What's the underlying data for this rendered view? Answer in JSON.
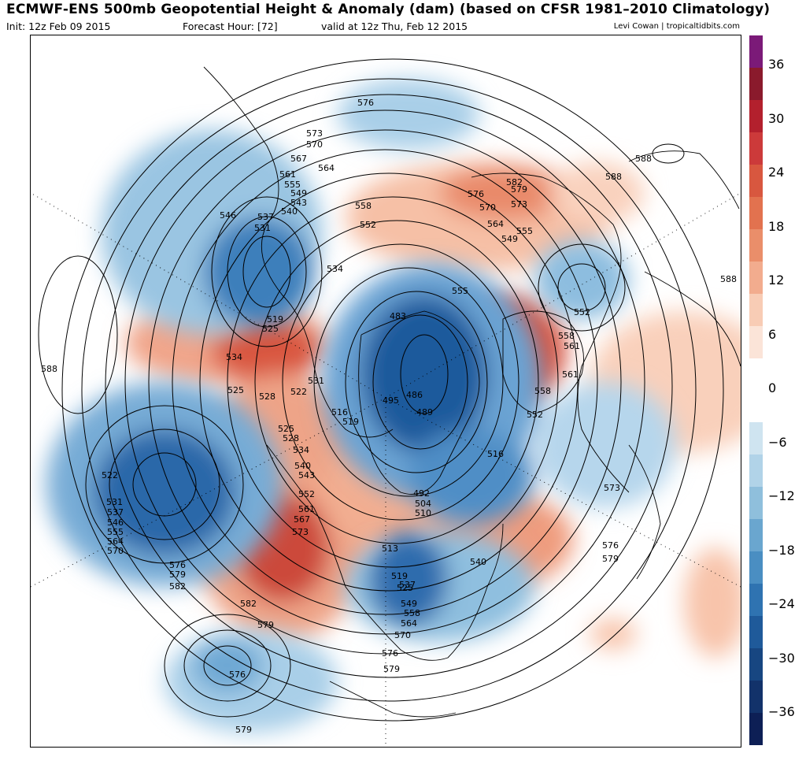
{
  "header": {
    "title": "ECMWF-ENS 500mb Geopotential Height & Anomaly (dam) (based on CFSR 1981–2010 Climatology)",
    "init": "Init: 12z Feb 09 2015",
    "forecast_hour": "Forecast Hour: [72]",
    "valid": "valid at 12z Thu, Feb 12 2015",
    "credit": "Levi Cowan | tropicaltidbits.com"
  },
  "colorbar": {
    "ticks": [
      "36",
      "30",
      "24",
      "18",
      "12",
      "6",
      "0",
      "−6",
      "−12",
      "−18",
      "−24",
      "−30",
      "−36"
    ],
    "bands": [
      "#7b1a78",
      "#8a1a2c",
      "#b3202d",
      "#cc3a3a",
      "#d8573f",
      "#e2724f",
      "#ea8e6a",
      "#f2ac8e",
      "#f8ccb5",
      "#fbe4d8",
      "#ffffff",
      "#ffffff",
      "#cfe4f0",
      "#b1d3e8",
      "#8fbfdc",
      "#6aa6cf",
      "#4a8ec2",
      "#2f73b1",
      "#1f5a9a",
      "#174681",
      "#12326a",
      "#0d1f55"
    ]
  },
  "map": {
    "contour_labels": {
      "c576a": "576",
      "c573a": "573",
      "c570a": "570",
      "c567a": "567",
      "c564a": "564",
      "c561a": "561",
      "c555a": "555",
      "c549a": "549",
      "c543a": "543",
      "c546a": "546",
      "c537a": "537",
      "c540a": "540",
      "c531a": "531",
      "c558a": "558",
      "c552a": "552",
      "c534a": "534",
      "c519a": "519",
      "c525a": "525",
      "c534b": "534",
      "c588a": "588",
      "c531b": "531",
      "c525b": "525",
      "c528a": "528",
      "c522a": "522",
      "c516a": "516",
      "c519b": "519",
      "c495a": "495",
      "c486a": "486",
      "c489a": "489",
      "c483a": "483",
      "c525c": "525",
      "c528b": "528",
      "c534c": "534",
      "c540b": "540",
      "c543b": "543",
      "c522b": "522",
      "c552b": "552",
      "c561b": "561",
      "c567b": "567",
      "c573b": "573",
      "c531c": "531",
      "c537b": "537",
      "c546b": "546",
      "c555b": "555",
      "c564b": "564",
      "c570b": "570",
      "c576b": "576",
      "c579a": "579",
      "c582a": "582",
      "c582b": "582",
      "c579b": "579",
      "c576c": "576",
      "c579c": "579",
      "c576d": "576",
      "c579d": "579",
      "c570c": "570",
      "c564c": "564",
      "c558b": "558",
      "c549b": "549",
      "c537c": "537",
      "c525d": "525",
      "c519c": "519",
      "c513a": "513",
      "c510a": "510",
      "c504a": "504",
      "c492a": "492",
      "c516b": "516",
      "c540c": "540",
      "c576e": "576",
      "c579e": "579",
      "c573c": "573",
      "c552c": "552",
      "c558c": "558",
      "c561c": "561",
      "c558d": "558",
      "c555c": "555",
      "c549c": "549",
      "c552d": "552",
      "c555d": "555",
      "c561d": "561",
      "c564d": "564",
      "c570d": "570",
      "c573d": "573",
      "c576f": "576",
      "c579f": "579",
      "c582c": "582",
      "c588b": "588",
      "c588c": "588",
      "c588d": "588"
    }
  }
}
